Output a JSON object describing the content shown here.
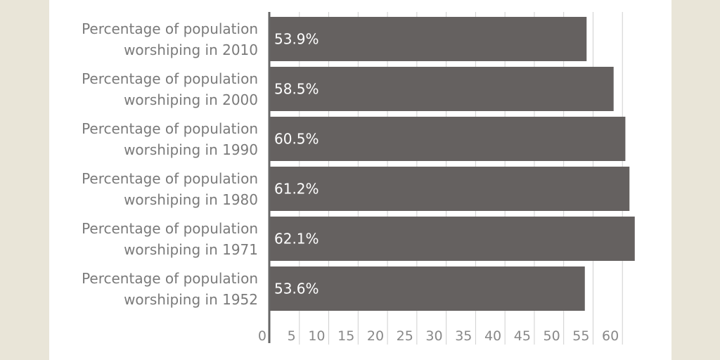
{
  "chart_data": {
    "type": "bar",
    "orientation": "horizontal",
    "categories": [
      "Percentage of population worshiping in 2010",
      "Percentage of population worshiping in 2000",
      "Percentage of population worshiping in 1990",
      "Percentage of population worshiping in 1980",
      "Percentage of population worshiping in 1971",
      "Percentage of population worshiping in 1952"
    ],
    "values": [
      53.9,
      58.5,
      60.5,
      61.2,
      62.1,
      53.6
    ],
    "value_labels": [
      "53.9%",
      "58.5%",
      "60.5%",
      "61.2%",
      "62.1%",
      "53.6%"
    ],
    "color": "#656160",
    "xlim": [
      0,
      65
    ],
    "xticks": [
      0,
      5,
      10,
      15,
      20,
      25,
      30,
      35,
      40,
      45,
      50,
      55,
      60
    ],
    "grid": true
  }
}
